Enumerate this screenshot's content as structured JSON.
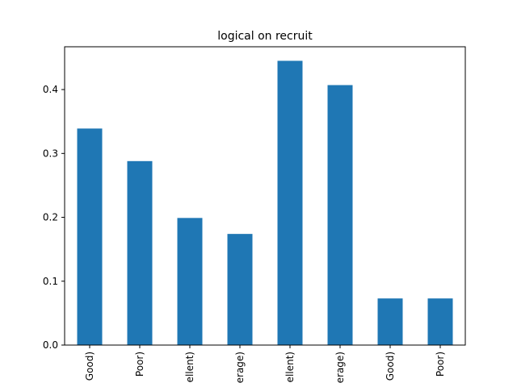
{
  "chart_data": {
    "type": "bar",
    "title": "logical on recruit",
    "xlabel": "",
    "ylabel": "",
    "categories": [
      "Good)",
      "Poor)",
      "ellent)",
      "erage)",
      "ellent)",
      "erage)",
      "Good)",
      "Poor)"
    ],
    "values": [
      0.339,
      0.288,
      0.199,
      0.174,
      0.445,
      0.407,
      0.073,
      0.073
    ],
    "ylim": [
      0,
      0.467
    ],
    "yticks": [
      0.0,
      0.1,
      0.2,
      0.3,
      0.4
    ],
    "ytick_labels": [
      "0.0",
      "0.1",
      "0.2",
      "0.3",
      "0.4"
    ],
    "grid": false,
    "legend": "none",
    "bar_color": "#1f77b4"
  }
}
